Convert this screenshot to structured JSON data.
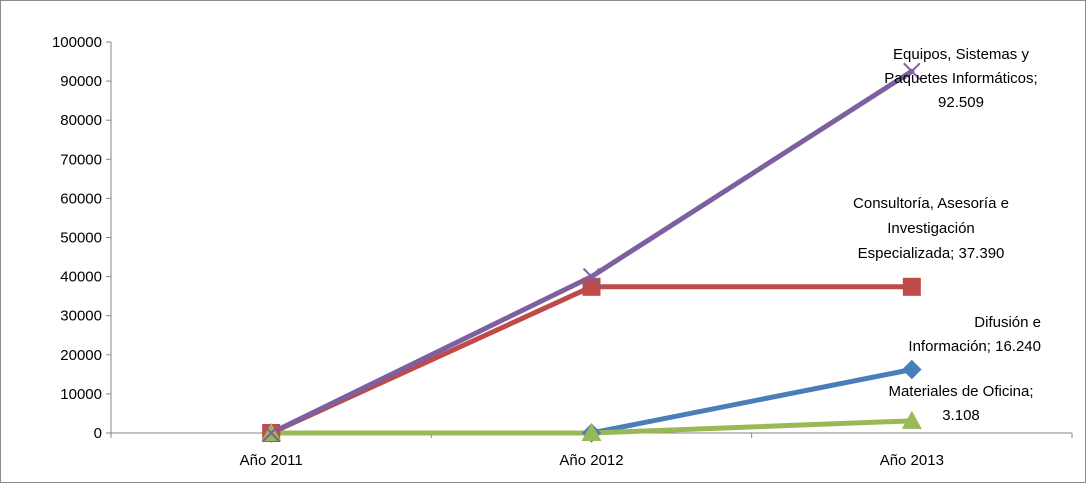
{
  "chart_data": {
    "type": "line",
    "categories": [
      "Año 2011",
      "Año 2012",
      "Año 2013"
    ],
    "ylim": [
      0,
      100000
    ],
    "yticks": [
      0,
      10000,
      20000,
      30000,
      40000,
      50000,
      60000,
      70000,
      80000,
      90000,
      100000
    ],
    "ytick_labels": [
      "0",
      "10000",
      "20000",
      "30000",
      "40000",
      "50000",
      "60000",
      "70000",
      "80000",
      "90000",
      "100000"
    ],
    "grid": false,
    "legend": "none",
    "series": [
      {
        "key": "difusion",
        "color": "#4a7ebb",
        "marker": "diamond",
        "values": [
          0,
          0,
          16240
        ],
        "label_lines": [
          "Difusión e",
          "Información;  16.240"
        ]
      },
      {
        "key": "consultoria",
        "color": "#be4b48",
        "marker": "square",
        "values": [
          0,
          37390,
          37390
        ],
        "label_lines": [
          "Consultoría, Asesoría e",
          "Investigación",
          "Especializada;  37.390"
        ]
      },
      {
        "key": "materiales",
        "color": "#98b954",
        "marker": "triangle",
        "values": [
          0,
          0,
          3108
        ],
        "label_lines": [
          "Materiales de Oficina;",
          "3.108"
        ]
      },
      {
        "key": "equipos",
        "color": "#7d60a0",
        "marker": "x",
        "values": [
          0,
          40000,
          92509
        ],
        "label_lines": [
          "Equipos, Sistemas y",
          "Paquetes Informáticos;",
          "92.509"
        ]
      }
    ]
  }
}
